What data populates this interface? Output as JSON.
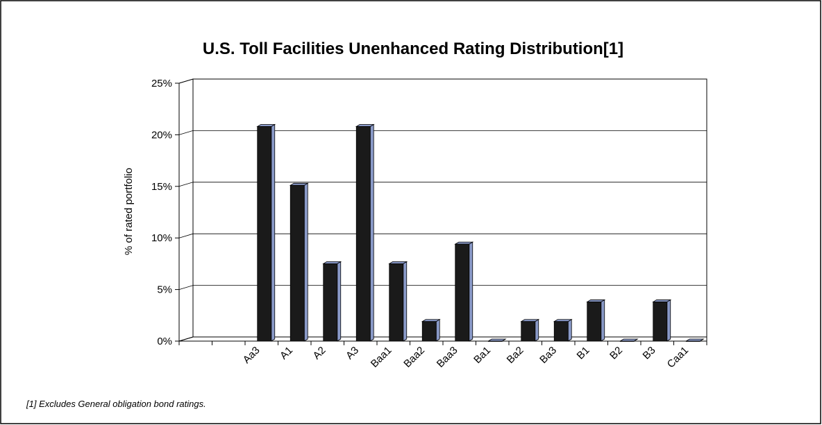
{
  "chart_data": {
    "type": "bar",
    "title": "U.S. Toll Facilities Unenhanced Rating Distribution[1]",
    "y_axis_label": "% of rated portfolio",
    "footnote": "[1] Excludes General obligation bond ratings.",
    "categories": [
      null,
      null,
      "Aa3",
      "A1",
      "A2",
      "A3",
      "Baa1",
      "Baa2",
      "Baa3",
      "Ba1",
      "Ba2",
      "Ba3",
      "B1",
      "B2",
      "B3",
      "Caa1"
    ],
    "values": [
      null,
      null,
      20.8,
      15.1,
      7.5,
      20.8,
      7.5,
      1.9,
      9.4,
      0,
      1.9,
      1.9,
      3.8,
      0,
      3.8,
      0
    ],
    "color": "#1a1a1a",
    "side_color": "#8a9ac8",
    "ylim": [
      0,
      25
    ],
    "yticks": [
      {
        "value": 0,
        "label": "0%"
      },
      {
        "value": 5,
        "label": "5%"
      },
      {
        "value": 10,
        "label": "10%"
      },
      {
        "value": 15,
        "label": "15%"
      },
      {
        "value": 20,
        "label": "20%"
      },
      {
        "value": 25,
        "label": "25%"
      }
    ],
    "grid": true
  }
}
